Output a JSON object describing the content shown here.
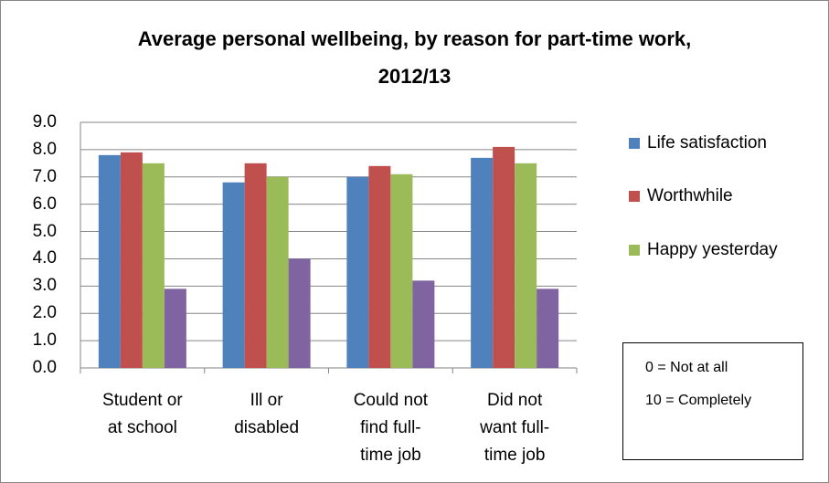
{
  "chart_data": {
    "type": "bar",
    "title_lines": [
      "Average personal wellbeing, by reason for part-time work,",
      "2012/13"
    ],
    "categories": [
      "Student or\nat school",
      "Ill or\ndisabled",
      "Could not\nfind full-\ntime job",
      "Did not\nwant full-\ntime job"
    ],
    "series": [
      {
        "name": "Life satisfaction",
        "color": "#4f81bd",
        "values": [
          7.8,
          6.8,
          7.0,
          7.7
        ]
      },
      {
        "name": "Worthwhile",
        "color": "#c0504d",
        "values": [
          7.9,
          7.5,
          7.4,
          8.1
        ]
      },
      {
        "name": "Happy yesterday",
        "color": "#9bbb59",
        "values": [
          7.5,
          7.0,
          7.1,
          7.5
        ]
      },
      {
        "name": "",
        "color": "#8064a2",
        "values": [
          2.9,
          4.0,
          3.2,
          2.9
        ]
      }
    ],
    "y_ticks": [
      "0.0",
      "1.0",
      "2.0",
      "3.0",
      "4.0",
      "5.0",
      "6.0",
      "7.0",
      "8.0",
      "9.0"
    ],
    "ylim": [
      0,
      9
    ],
    "grid": true,
    "legend_position": "right"
  },
  "note": {
    "lines": [
      "0 = Not at all",
      "10 = Completely"
    ]
  }
}
